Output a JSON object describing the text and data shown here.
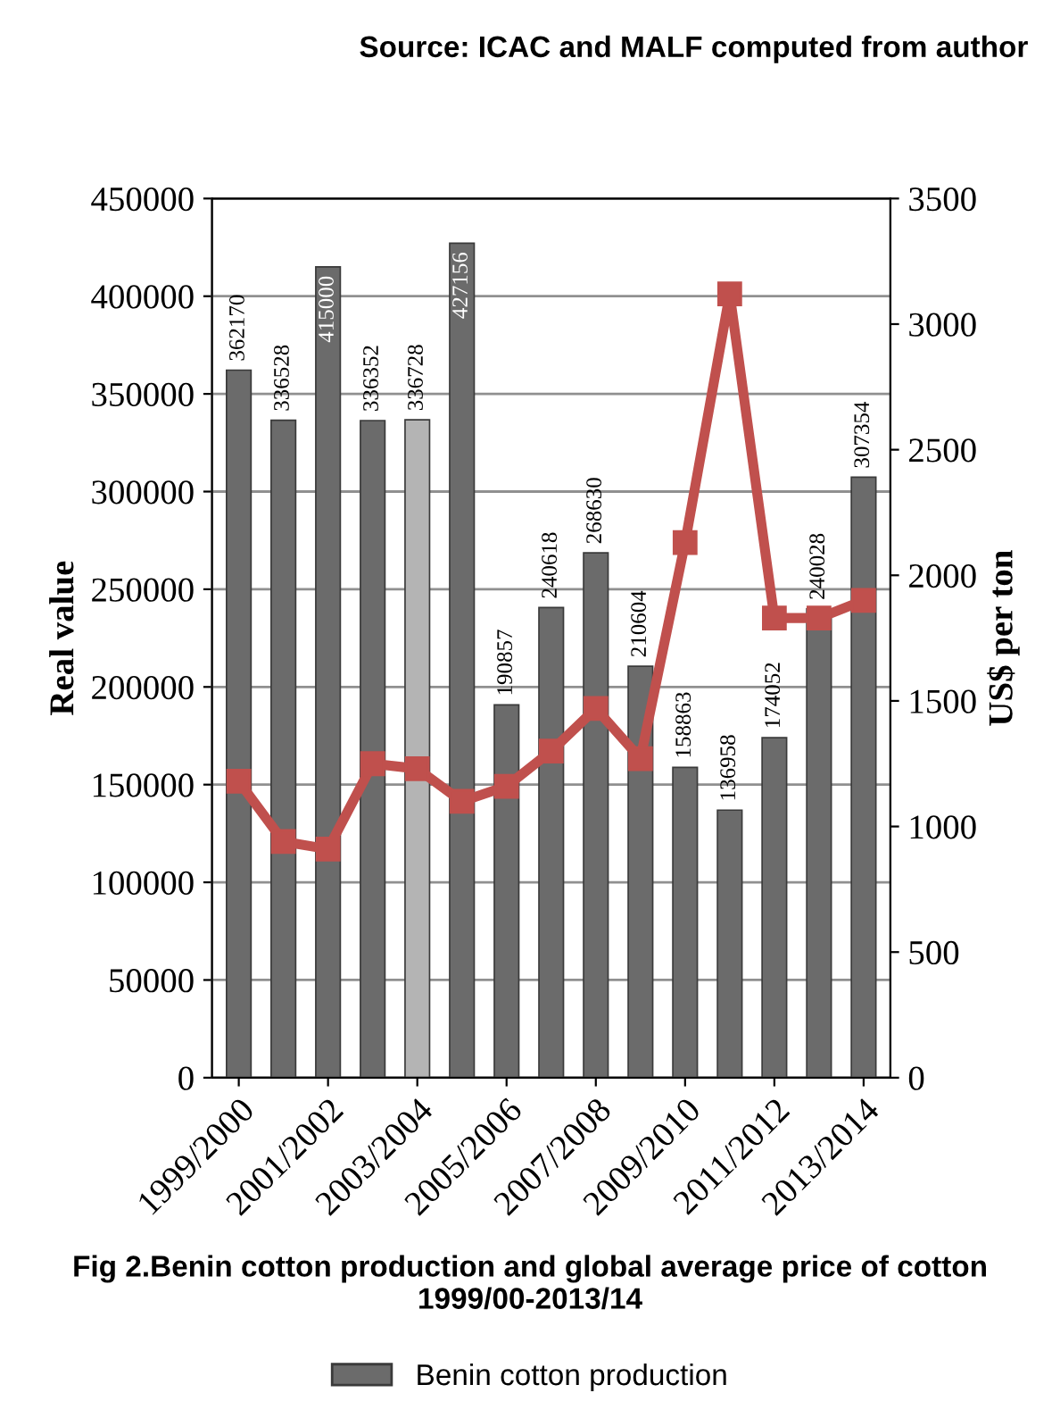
{
  "chart_data": {
    "type": "bar",
    "title": "Fig 2.Benin cotton production and global average price of cotton 1999/00-2013/14",
    "annotations": [
      "Source: ICAC and MALF computed from author"
    ],
    "ylabel": "Real value",
    "y2label": "US$ per ton",
    "categories": [
      "1999/2000",
      null,
      "2001/2002",
      null,
      "2003/2004",
      null,
      "2005/2006",
      null,
      "2007/2008",
      null,
      "2009/2010",
      null,
      "2011/2012",
      null,
      "2013/2014"
    ],
    "series": [
      {
        "name": "Benin cotton production",
        "value_labels": [
          "362170",
          "336528",
          "415000",
          "336352",
          "336728",
          "427156",
          "190857",
          "240618",
          "268630",
          "210604",
          "158863",
          "136958",
          "174052",
          "240028",
          "307354"
        ],
        "colors": [
          "#6b6b6b",
          "#6b6b6b",
          "#6b6b6b",
          "#6b6b6b",
          "#b4b4b4",
          "#6b6b6b",
          "#6b6b6b",
          "#6b6b6b",
          "#6b6b6b",
          "#6b6b6b",
          "#6b6b6b",
          "#6b6b6b",
          "#6b6b6b",
          "#6b6b6b",
          "#6b6b6b"
        ],
        "values": [
          362170,
          336528,
          415000,
          336352,
          336728,
          427156,
          190857,
          240618,
          268630,
          210604,
          158863,
          136958,
          174052,
          240028,
          307354
        ]
      },
      {
        "type": "line",
        "axis": "y2",
        "color": "#c0504d",
        "marker": "square",
        "values": [
          1180,
          940,
          910,
          1250,
          1230,
          1100,
          1160,
          1300,
          1470,
          1270,
          2130,
          3120,
          1830,
          1830,
          1900
        ]
      }
    ],
    "ylim": [
      0,
      450000
    ],
    "yticks": [
      0,
      50000,
      100000,
      150000,
      200000,
      250000,
      300000,
      350000,
      400000,
      450000
    ],
    "y2lim": [
      0,
      3500
    ],
    "y2ticks": [
      0,
      500,
      1000,
      1500,
      2000,
      2500,
      3000,
      3500
    ],
    "grid": "y",
    "legend": "bottom"
  }
}
